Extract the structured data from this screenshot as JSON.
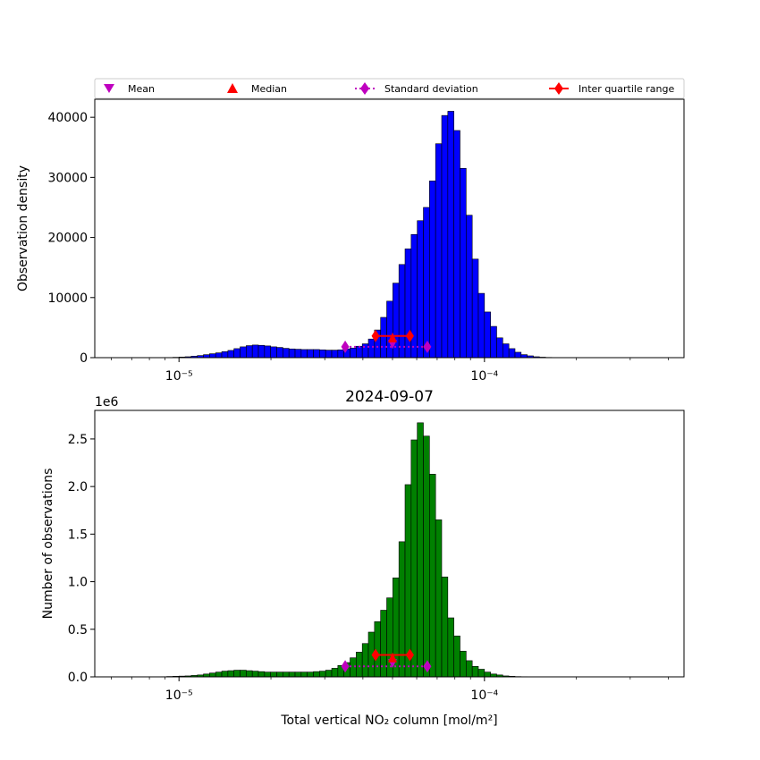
{
  "legend": {
    "placement": "top, above upper panel",
    "items": [
      {
        "label": "Mean",
        "marker": "triangle-down",
        "color": "#bf00bf"
      },
      {
        "label": "Median",
        "marker": "triangle-up",
        "color": "#ff0000"
      },
      {
        "label": "Standard deviation",
        "marker": "diamond",
        "line": "dotted",
        "color": "#bf00bf"
      },
      {
        "label": "Inter quartile range",
        "marker": "diamond",
        "line": "solid",
        "color": "#ff0000"
      }
    ]
  },
  "chart_data": [
    {
      "type": "bar",
      "scale_x": "log",
      "xlim": [
        5.3e-06,
        0.00045
      ],
      "ylim": [
        0,
        43000
      ],
      "ylabel": "Observation density",
      "xlabel": "",
      "title": "",
      "x_tick_labels": [
        "10⁻⁵",
        "10⁻⁴"
      ],
      "y_tick_labels": [
        "0",
        "10000",
        "20000",
        "30000",
        "40000"
      ],
      "y_ticks": [
        0,
        10000,
        20000,
        30000,
        40000
      ],
      "bar_color": "#0000ff",
      "bin_log10_start": -5.3,
      "bin_log10_width": 0.02,
      "values": [
        0,
        0,
        0,
        0,
        0,
        0,
        0,
        0,
        0,
        0,
        0,
        0,
        10,
        30,
        60,
        100,
        150,
        250,
        350,
        500,
        650,
        800,
        1000,
        1200,
        1500,
        1800,
        2000,
        2100,
        2050,
        1950,
        1800,
        1700,
        1550,
        1450,
        1400,
        1350,
        1350,
        1350,
        1300,
        1250,
        1250,
        1300,
        1450,
        1600,
        1900,
        2300,
        3100,
        4600,
        6700,
        9400,
        12400,
        15500,
        18100,
        20500,
        22800,
        25000,
        29400,
        35600,
        40300,
        41000,
        37800,
        31500,
        23700,
        16400,
        10700,
        7600,
        5200,
        3300,
        2300,
        1500,
        900,
        500,
        300,
        150,
        80,
        40,
        20,
        10,
        5,
        0,
        0,
        0,
        0,
        0,
        0,
        0,
        0,
        0,
        0,
        0,
        0,
        0,
        0,
        0,
        0,
        0,
        0,
        0,
        0,
        0,
        0,
        0,
        0,
        0,
        0,
        0,
        0
      ],
      "stats": {
        "mean": {
          "x": 5e-05,
          "y": 2200
        },
        "median": {
          "x": 5e-05,
          "y": 3300
        },
        "std": {
          "x": [
            3.5e-05,
            6.5e-05
          ],
          "y": 1800
        },
        "iqr": {
          "x": [
            4.4e-05,
            5.7e-05
          ],
          "y": 3600
        }
      }
    },
    {
      "type": "bar",
      "scale_x": "log",
      "xlim": [
        5.3e-06,
        0.00045
      ],
      "ylim": [
        0,
        2.8
      ],
      "title": "2024-09-07",
      "ylabel": "Number of observations",
      "xlabel": "Total vertical NO₂ column [mol/m²]",
      "offset_text": "1e6",
      "x_tick_labels": [
        "10⁻⁵",
        "10⁻⁴"
      ],
      "y_tick_labels": [
        "0.0",
        "0.5",
        "1.0",
        "1.5",
        "2.0",
        "2.5"
      ],
      "y_ticks": [
        0,
        0.5,
        1.0,
        1.5,
        2.0,
        2.5
      ],
      "bar_color": "#008000",
      "bin_log10_start": -5.3,
      "bin_log10_width": 0.02,
      "values": [
        0,
        0,
        0,
        0,
        0,
        0,
        0,
        0,
        0,
        0,
        0,
        0,
        0.002,
        0.004,
        0.006,
        0.008,
        0.01,
        0.015,
        0.02,
        0.03,
        0.04,
        0.05,
        0.06,
        0.065,
        0.07,
        0.07,
        0.065,
        0.06,
        0.055,
        0.05,
        0.05,
        0.05,
        0.05,
        0.05,
        0.05,
        0.05,
        0.05,
        0.055,
        0.06,
        0.07,
        0.09,
        0.12,
        0.15,
        0.2,
        0.26,
        0.35,
        0.47,
        0.58,
        0.7,
        0.83,
        1.04,
        1.42,
        2.02,
        2.49,
        2.67,
        2.53,
        2.13,
        1.65,
        1.05,
        0.62,
        0.43,
        0.27,
        0.17,
        0.11,
        0.08,
        0.05,
        0.03,
        0.02,
        0.01,
        0.006,
        0.003,
        0.002,
        0.001,
        0,
        0,
        0,
        0,
        0,
        0,
        0,
        0,
        0,
        0,
        0,
        0,
        0,
        0,
        0,
        0,
        0,
        0,
        0,
        0,
        0,
        0,
        0,
        0,
        0,
        0,
        0,
        0,
        0,
        0,
        0,
        0,
        0,
        0
      ],
      "stats": {
        "mean": {
          "x": 5e-05,
          "y": 0.14
        },
        "median": {
          "x": 5e-05,
          "y": 0.2
        },
        "std": {
          "x": [
            3.5e-05,
            6.5e-05
          ],
          "y": 0.11
        },
        "iqr": {
          "x": [
            4.4e-05,
            5.7e-05
          ],
          "y": 0.23
        }
      }
    }
  ]
}
